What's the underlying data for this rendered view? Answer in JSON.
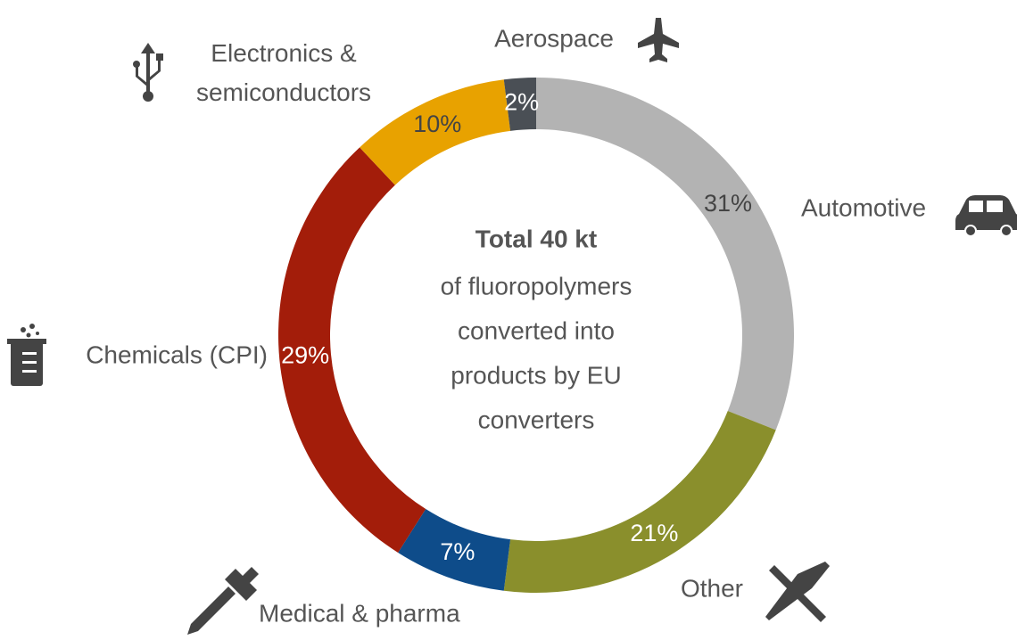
{
  "chart_data": {
    "type": "donut",
    "categories": [
      "Automotive",
      "Other",
      "Medical & pharma",
      "Chemicals (CPI)",
      "Electronics & semiconductors",
      "Aerospace"
    ],
    "values": [
      31,
      21,
      7,
      29,
      10,
      2
    ],
    "value_labels": [
      "31%",
      "21%",
      "7%",
      "29%",
      "10%",
      "2%"
    ],
    "colors": [
      "#b3b3b3",
      "#8a8f2c",
      "#0e4c8a",
      "#a31d0a",
      "#e8a200",
      "#4a4f55"
    ],
    "center_title": "Total 40 kt",
    "center_lines": [
      "of fluoropolymers",
      "converted into",
      "products by EU",
      "converters"
    ]
  }
}
